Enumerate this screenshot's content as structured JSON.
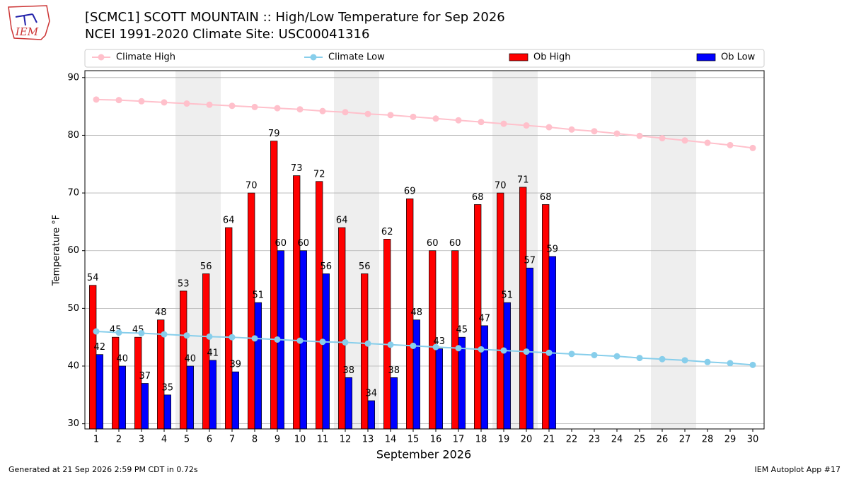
{
  "chart_data": {
    "type": "bar",
    "title": "[SCMC1] SCOTT MOUNTAIN :: High/Low Temperature for Sep 2026",
    "subtitle": "NCEI 1991-2020 Climate Site: USC00041316",
    "xlabel": "September 2026",
    "ylabel": "Temperature °F",
    "x": [
      1,
      2,
      3,
      4,
      5,
      6,
      7,
      8,
      9,
      10,
      11,
      12,
      13,
      14,
      15,
      16,
      17,
      18,
      19,
      20,
      21,
      22,
      23,
      24,
      25,
      26,
      27,
      28,
      29,
      30
    ],
    "xlim": [
      0.5,
      30.5
    ],
    "ylim": [
      29.1,
      91.2
    ],
    "yticks": [
      30,
      40,
      50,
      60,
      70,
      80,
      90
    ],
    "grid": true,
    "shaded_days": [
      5,
      6,
      12,
      13,
      19,
      20,
      26,
      27
    ],
    "shade_color": "#eeeeee",
    "series": [
      {
        "name": "Climate High",
        "kind": "line",
        "color": "#ffc0cb",
        "values": [
          86.2,
          86.1,
          85.9,
          85.7,
          85.5,
          85.3,
          85.1,
          84.9,
          84.7,
          84.5,
          84.2,
          84.0,
          83.7,
          83.5,
          83.2,
          82.9,
          82.6,
          82.3,
          82.0,
          81.7,
          81.4,
          81.0,
          80.7,
          80.3,
          79.9,
          79.5,
          79.1,
          78.7,
          78.3,
          77.8
        ]
      },
      {
        "name": "Climate Low",
        "kind": "line",
        "color": "#87ceeb",
        "values": [
          46.0,
          45.8,
          45.7,
          45.5,
          45.3,
          45.1,
          45.0,
          44.8,
          44.6,
          44.4,
          44.2,
          44.1,
          43.9,
          43.7,
          43.5,
          43.3,
          43.1,
          42.9,
          42.7,
          42.5,
          42.3,
          42.1,
          41.9,
          41.7,
          41.4,
          41.2,
          41.0,
          40.7,
          40.5,
          40.2
        ]
      },
      {
        "name": "Ob High",
        "kind": "bar",
        "color": "#ff0000",
        "values": [
          54,
          45,
          45,
          48,
          53,
          56,
          64,
          70,
          79,
          73,
          72,
          64,
          56,
          62,
          69,
          60,
          60,
          68,
          70,
          71,
          68,
          null,
          null,
          null,
          null,
          null,
          null,
          null,
          null,
          null
        ]
      },
      {
        "name": "Ob Low",
        "kind": "bar",
        "color": "#0000ff",
        "values": [
          42,
          40,
          37,
          35,
          40,
          41,
          39,
          51,
          60,
          60,
          56,
          38,
          34,
          38,
          48,
          43,
          45,
          47,
          51,
          57,
          59,
          null,
          null,
          null,
          null,
          null,
          null,
          null,
          null,
          null
        ]
      }
    ]
  },
  "logo": "IEM",
  "footer": {
    "left": "Generated at 21 Sep 2026 2:59 PM CDT in 0.72s",
    "right": "IEM Autoplot App #17"
  }
}
